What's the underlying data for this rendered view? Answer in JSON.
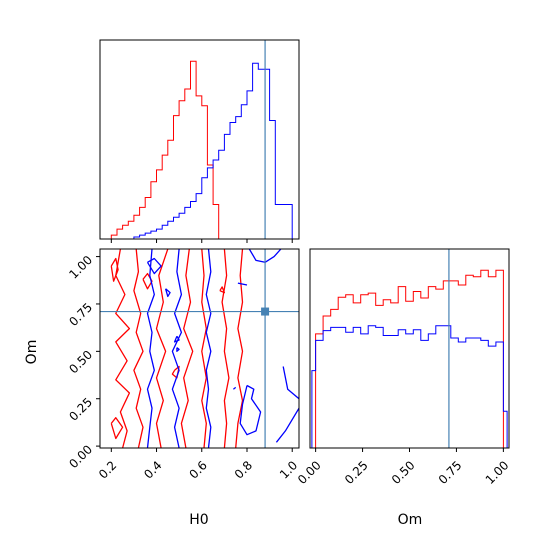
{
  "chart_data": {
    "type": "corner-plot",
    "parameters": [
      "H0",
      "Om"
    ],
    "truths": {
      "H0": 0.88,
      "Om": 0.71
    },
    "colors": {
      "series_a": "#ff0000",
      "series_b": "#0000ff",
      "truth": "#4682b4"
    },
    "panels": [
      {
        "id": "H0-marginal",
        "type": "histogram",
        "x_range": [
          0.15,
          1.03
        ],
        "bins_edges": [
          0.2,
          0.225,
          0.25,
          0.275,
          0.3,
          0.325,
          0.35,
          0.375,
          0.4,
          0.425,
          0.45,
          0.475,
          0.5,
          0.525,
          0.55,
          0.575,
          0.6,
          0.625,
          0.65,
          0.675,
          0.7,
          0.725,
          0.75,
          0.775,
          0.8,
          0.825,
          0.85,
          0.875,
          0.9,
          0.925,
          0.95,
          0.975,
          1.0
        ],
        "series": [
          {
            "color": "series_a",
            "values": [
              4,
              10,
              14,
              18,
              24,
              32,
              42,
              58,
              70,
              85,
              100,
              125,
              140,
              152,
              180,
              145,
              135,
              75,
              35,
              0,
              0,
              0,
              0,
              0,
              0,
              0,
              0,
              0,
              0,
              0,
              0,
              0
            ]
          },
          {
            "color": "series_b",
            "values": [
              0,
              0,
              0,
              0,
              2,
              4,
              6,
              8,
              10,
              14,
              18,
              22,
              26,
              32,
              38,
              46,
              62,
              72,
              80,
              90,
              106,
              118,
              124,
              136,
              150,
              178,
              172,
              172,
              120,
              35,
              35,
              35
            ]
          }
        ]
      },
      {
        "id": "Om-marginal",
        "type": "histogram",
        "x_range": [
          -0.03,
          1.03
        ],
        "bins_edges": [
          -0.02,
          0.0,
          0.04,
          0.08,
          0.12,
          0.16,
          0.2,
          0.24,
          0.28,
          0.32,
          0.36,
          0.4,
          0.44,
          0.48,
          0.52,
          0.56,
          0.6,
          0.64,
          0.68,
          0.72,
          0.76,
          0.8,
          0.84,
          0.88,
          0.92,
          0.96,
          1.0,
          1.02
        ],
        "series": [
          {
            "color": "series_a",
            "values": [
              0,
              140,
              162,
              170,
              185,
              188,
              178,
              188,
              190,
              175,
              182,
              178,
              198,
              180,
              192,
              184,
              198,
              195,
              205,
              205,
              200,
              212,
              210,
              218,
              210,
              218,
              0
            ]
          },
          {
            "color": "series_b",
            "values": [
              95,
              132,
              144,
              148,
              148,
              142,
              148,
              140,
              150,
              148,
              138,
              138,
              145,
              140,
              145,
              132,
              140,
              150,
              150,
              135,
              130,
              135,
              135,
              132,
              125,
              130,
              45
            ]
          }
        ]
      },
      {
        "id": "Om-vs-H0",
        "type": "contour",
        "x_range": [
          0.15,
          1.03
        ],
        "y_range": [
          -0.01,
          1.04
        ],
        "series": [
          {
            "color": "series_a",
            "contours": [
              [
                [
                  0.45,
                  1.04
                ],
                [
                  0.41,
                  0.9
                ],
                [
                  0.43,
                  0.76
                ],
                [
                  0.4,
                  0.62
                ],
                [
                  0.44,
                  0.5
                ],
                [
                  0.4,
                  0.36
                ],
                [
                  0.43,
                  0.24
                ],
                [
                  0.4,
                  0.12
                ],
                [
                  0.42,
                  -0.01
                ]
              ],
              [
                [
                  0.545,
                  1.04
                ],
                [
                  0.53,
                  0.9
                ],
                [
                  0.55,
                  0.76
                ],
                [
                  0.52,
                  0.62
                ],
                [
                  0.56,
                  0.5
                ],
                [
                  0.52,
                  0.36
                ],
                [
                  0.54,
                  0.24
                ],
                [
                  0.51,
                  0.12
                ],
                [
                  0.53,
                  -0.01
                ]
              ],
              [
                [
                  0.6,
                  1.04
                ],
                [
                  0.61,
                  0.9
                ],
                [
                  0.6,
                  0.76
                ],
                [
                  0.62,
                  0.62
                ],
                [
                  0.6,
                  0.5
                ],
                [
                  0.62,
                  0.36
                ],
                [
                  0.6,
                  0.24
                ],
                [
                  0.62,
                  0.12
                ],
                [
                  0.61,
                  -0.01
                ]
              ],
              [
                [
                  0.7,
                  1.04
                ],
                [
                  0.71,
                  0.9
                ],
                [
                  0.69,
                  0.76
                ],
                [
                  0.71,
                  0.62
                ],
                [
                  0.7,
                  0.5
                ],
                [
                  0.72,
                  0.36
                ],
                [
                  0.7,
                  0.24
                ],
                [
                  0.71,
                  0.12
                ],
                [
                  0.7,
                  -0.01
                ]
              ],
              [
                [
                  0.78,
                  1.04
                ],
                [
                  0.77,
                  0.9
                ],
                [
                  0.78,
                  0.76
                ],
                [
                  0.76,
                  0.62
                ],
                [
                  0.78,
                  0.5
                ],
                [
                  0.76,
                  0.36
                ],
                [
                  0.78,
                  0.24
                ],
                [
                  0.76,
                  0.12
                ],
                [
                  0.75,
                  -0.01
                ]
              ],
              [
                [
                  0.24,
                  1.04
                ],
                [
                  0.22,
                  0.9
                ],
                [
                  0.26,
                  0.8
                ],
                [
                  0.22,
                  0.7
                ],
                [
                  0.28,
                  0.62
                ],
                [
                  0.22,
                  0.55
                ],
                [
                  0.27,
                  0.45
                ],
                [
                  0.22,
                  0.35
                ],
                [
                  0.28,
                  0.28
                ],
                [
                  0.24,
                  0.18
                ],
                [
                  0.27,
                  0.08
                ],
                [
                  0.25,
                  -0.01
                ]
              ],
              [
                [
                  0.31,
                  1.04
                ],
                [
                  0.32,
                  0.92
                ],
                [
                  0.3,
                  0.82
                ],
                [
                  0.33,
                  0.7
                ],
                [
                  0.31,
                  0.6
                ],
                [
                  0.34,
                  0.5
                ],
                [
                  0.3,
                  0.4
                ],
                [
                  0.33,
                  0.3
                ],
                [
                  0.31,
                  0.2
                ],
                [
                  0.34,
                  0.1
                ],
                [
                  0.32,
                  -0.01
                ]
              ],
              [
                [
                  0.2,
                  0.95
                ],
                [
                  0.21,
                  0.87
                ],
                [
                  0.23,
                  0.93
                ],
                [
                  0.22,
                  0.99
                ],
                [
                  0.2,
                  0.95
                ]
              ],
              [
                [
                  0.34,
                  0.88
                ],
                [
                  0.36,
                  0.83
                ],
                [
                  0.38,
                  0.87
                ],
                [
                  0.36,
                  0.91
                ],
                [
                  0.34,
                  0.88
                ]
              ],
              [
                [
                  0.48,
                  0.4
                ],
                [
                  0.5,
                  0.42
                ],
                [
                  0.49,
                  0.36
                ],
                [
                  0.47,
                  0.38
                ],
                [
                  0.48,
                  0.4
                ]
              ],
              [
                [
                  0.68,
                  0.82
                ],
                [
                  0.69,
                  0.84
                ],
                [
                  0.7,
                  0.81
                ],
                [
                  0.68,
                  0.82
                ]
              ],
              [
                [
                  0.2,
                  0.12
                ],
                [
                  0.22,
                  0.04
                ],
                [
                  0.25,
                  0.1
                ],
                [
                  0.22,
                  0.15
                ],
                [
                  0.2,
                  0.12
                ]
              ]
            ]
          },
          {
            "color": "series_b",
            "contours": [
              [
                [
                  0.38,
                  1.04
                ],
                [
                  0.37,
                  0.9
                ],
                [
                  0.39,
                  0.8
                ],
                [
                  0.36,
                  0.7
                ],
                [
                  0.38,
                  0.6
                ],
                [
                  0.37,
                  0.5
                ],
                [
                  0.39,
                  0.4
                ],
                [
                  0.36,
                  0.3
                ],
                [
                  0.38,
                  0.2
                ],
                [
                  0.37,
                  0.1
                ],
                [
                  0.36,
                  -0.01
                ]
              ],
              [
                [
                  0.5,
                  1.04
                ],
                [
                  0.49,
                  0.92
                ],
                [
                  0.51,
                  0.8
                ],
                [
                  0.48,
                  0.7
                ],
                [
                  0.51,
                  0.6
                ],
                [
                  0.47,
                  0.5
                ],
                [
                  0.5,
                  0.4
                ],
                [
                  0.47,
                  0.3
                ],
                [
                  0.5,
                  0.2
                ],
                [
                  0.48,
                  0.1
                ],
                [
                  0.5,
                  -0.01
                ]
              ],
              [
                [
                  0.63,
                  1.04
                ],
                [
                  0.64,
                  0.92
                ],
                [
                  0.62,
                  0.8
                ],
                [
                  0.64,
                  0.7
                ],
                [
                  0.62,
                  0.6
                ],
                [
                  0.64,
                  0.5
                ],
                [
                  0.62,
                  0.4
                ],
                [
                  0.63,
                  0.3
                ],
                [
                  0.62,
                  0.2
                ],
                [
                  0.64,
                  0.1
                ],
                [
                  0.63,
                  -0.01
                ]
              ],
              [
                [
                  0.36,
                  0.97
                ],
                [
                  0.39,
                  0.99
                ],
                [
                  0.42,
                  0.95
                ],
                [
                  0.39,
                  0.91
                ],
                [
                  0.36,
                  0.97
                ]
              ],
              [
                [
                  0.8,
                  0.32
                ],
                [
                  0.83,
                  0.3
                ],
                [
                  0.82,
                  0.25
                ],
                [
                  0.86,
                  0.18
                ],
                [
                  0.84,
                  0.08
                ],
                [
                  0.8,
                  0.06
                ],
                [
                  0.77,
                  0.12
                ],
                [
                  0.78,
                  0.22
                ],
                [
                  0.8,
                  0.32
                ]
              ],
              [
                [
                  0.96,
                  0.42
                ],
                [
                  0.98,
                  0.3
                ],
                [
                  1.03,
                  0.25
                ]
              ],
              [
                [
                  0.93,
                  0.02
                ],
                [
                  0.97,
                  0.08
                ],
                [
                  1.03,
                  0.2
                ]
              ],
              [
                [
                  0.81,
                  1.04
                ],
                [
                  0.84,
                  0.98
                ],
                [
                  0.88,
                  0.97
                ],
                [
                  0.92,
                  1.0
                ],
                [
                  0.95,
                  1.04
                ]
              ],
              [
                [
                  0.44,
                  0.83
                ],
                [
                  0.46,
                  0.81
                ],
                [
                  0.45,
                  0.79
                ],
                [
                  0.44,
                  0.83
                ]
              ],
              [
                [
                  0.49,
                  0.58
                ],
                [
                  0.5,
                  0.56
                ],
                [
                  0.48,
                  0.55
                ],
                [
                  0.49,
                  0.58
                ]
              ],
              [
                [
                  0.49,
                  0.52
                ],
                [
                  0.5,
                  0.51
                ],
                [
                  0.49,
                  0.5
                ],
                [
                  0.49,
                  0.52
                ]
              ],
              [
                [
                  0.74,
                  0.3
                ],
                [
                  0.75,
                  0.31
                ]
              ],
              [
                [
                  0.76,
                  0.86
                ],
                [
                  0.8,
                  0.85
                ]
              ]
            ]
          }
        ]
      }
    ],
    "axes": {
      "H0": {
        "label": "H0",
        "ticks": [
          0.2,
          0.4,
          0.6,
          0.8,
          1.0
        ],
        "tick_labels": [
          "0.2",
          "0.4",
          "0.6",
          "0.8",
          "1.0"
        ]
      },
      "Om": {
        "label": "Om",
        "ticks": [
          0.0,
          0.25,
          0.5,
          0.75,
          1.0
        ],
        "tick_labels": [
          "0.00",
          "0.25",
          "0.50",
          "0.75",
          "1.00"
        ]
      }
    }
  }
}
